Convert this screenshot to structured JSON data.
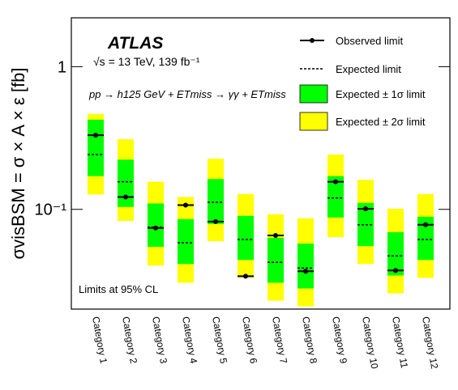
{
  "chart_data": {
    "type": "limit-bands",
    "title": "ATLAS",
    "subtitle": "√s = 13 TeV, 139 fb⁻¹",
    "process_label": "pp → h125 GeV + ETmiss → γγ + ETmiss",
    "annotation": "Limits at 95% CL",
    "y_label": "σvisBSM = σ × A × ε [fb]",
    "log_y": true,
    "grid": false,
    "legend": "upper right",
    "ylim": [
      0.02,
      2.2
    ],
    "yticks": [
      {
        "value": 0.1,
        "label": "10⁻¹"
      },
      1
    ],
    "categories": [
      "Category 1",
      "Category 2",
      "Category 3",
      "Category 4",
      "Category 5",
      "Category 6",
      "Category 7",
      "Category 8",
      "Category 9",
      "Category 10",
      "Category 11",
      "Category 12"
    ],
    "series": [
      {
        "name": "Observed limit",
        "color": "#000000",
        "values": [
          0.331,
          0.122,
          0.074,
          0.107,
          0.082,
          0.034,
          0.0656,
          0.0368,
          0.156,
          0.101,
          0.0373,
          0.078
        ]
      },
      {
        "name": "Expected limit",
        "color": "#000000",
        "values": [
          0.242,
          0.156,
          0.075,
          0.0583,
          0.112,
          0.0615,
          0.0425,
          0.0388,
          0.12,
          0.078,
          0.0472,
          0.0615
        ]
      },
      {
        "name": "Expected ± 1σ limit",
        "color": "#00ff00",
        "low": [
          0.171,
          0.104,
          0.0546,
          0.0414,
          0.079,
          0.0442,
          0.0306,
          0.0279,
          0.0877,
          0.0553,
          0.0344,
          0.0442
        ],
        "high": [
          0.425,
          0.223,
          0.11,
          0.0854,
          0.163,
          0.09,
          0.0631,
          0.0575,
          0.171,
          0.111,
          0.0692,
          0.0888
        ]
      },
      {
        "name": "Expected ± 2σ limit",
        "color": "#ffff00",
        "low": [
          0.127,
          0.083,
          0.0403,
          0.0306,
          0.0598,
          0.0331,
          0.0229,
          0.0209,
          0.064,
          0.0414,
          0.0258,
          0.0331
        ],
        "high": [
          0.466,
          0.31,
          0.156,
          0.122,
          0.226,
          0.128,
          0.0924,
          0.0866,
          0.242,
          0.161,
          0.101,
          0.128
        ]
      }
    ]
  }
}
